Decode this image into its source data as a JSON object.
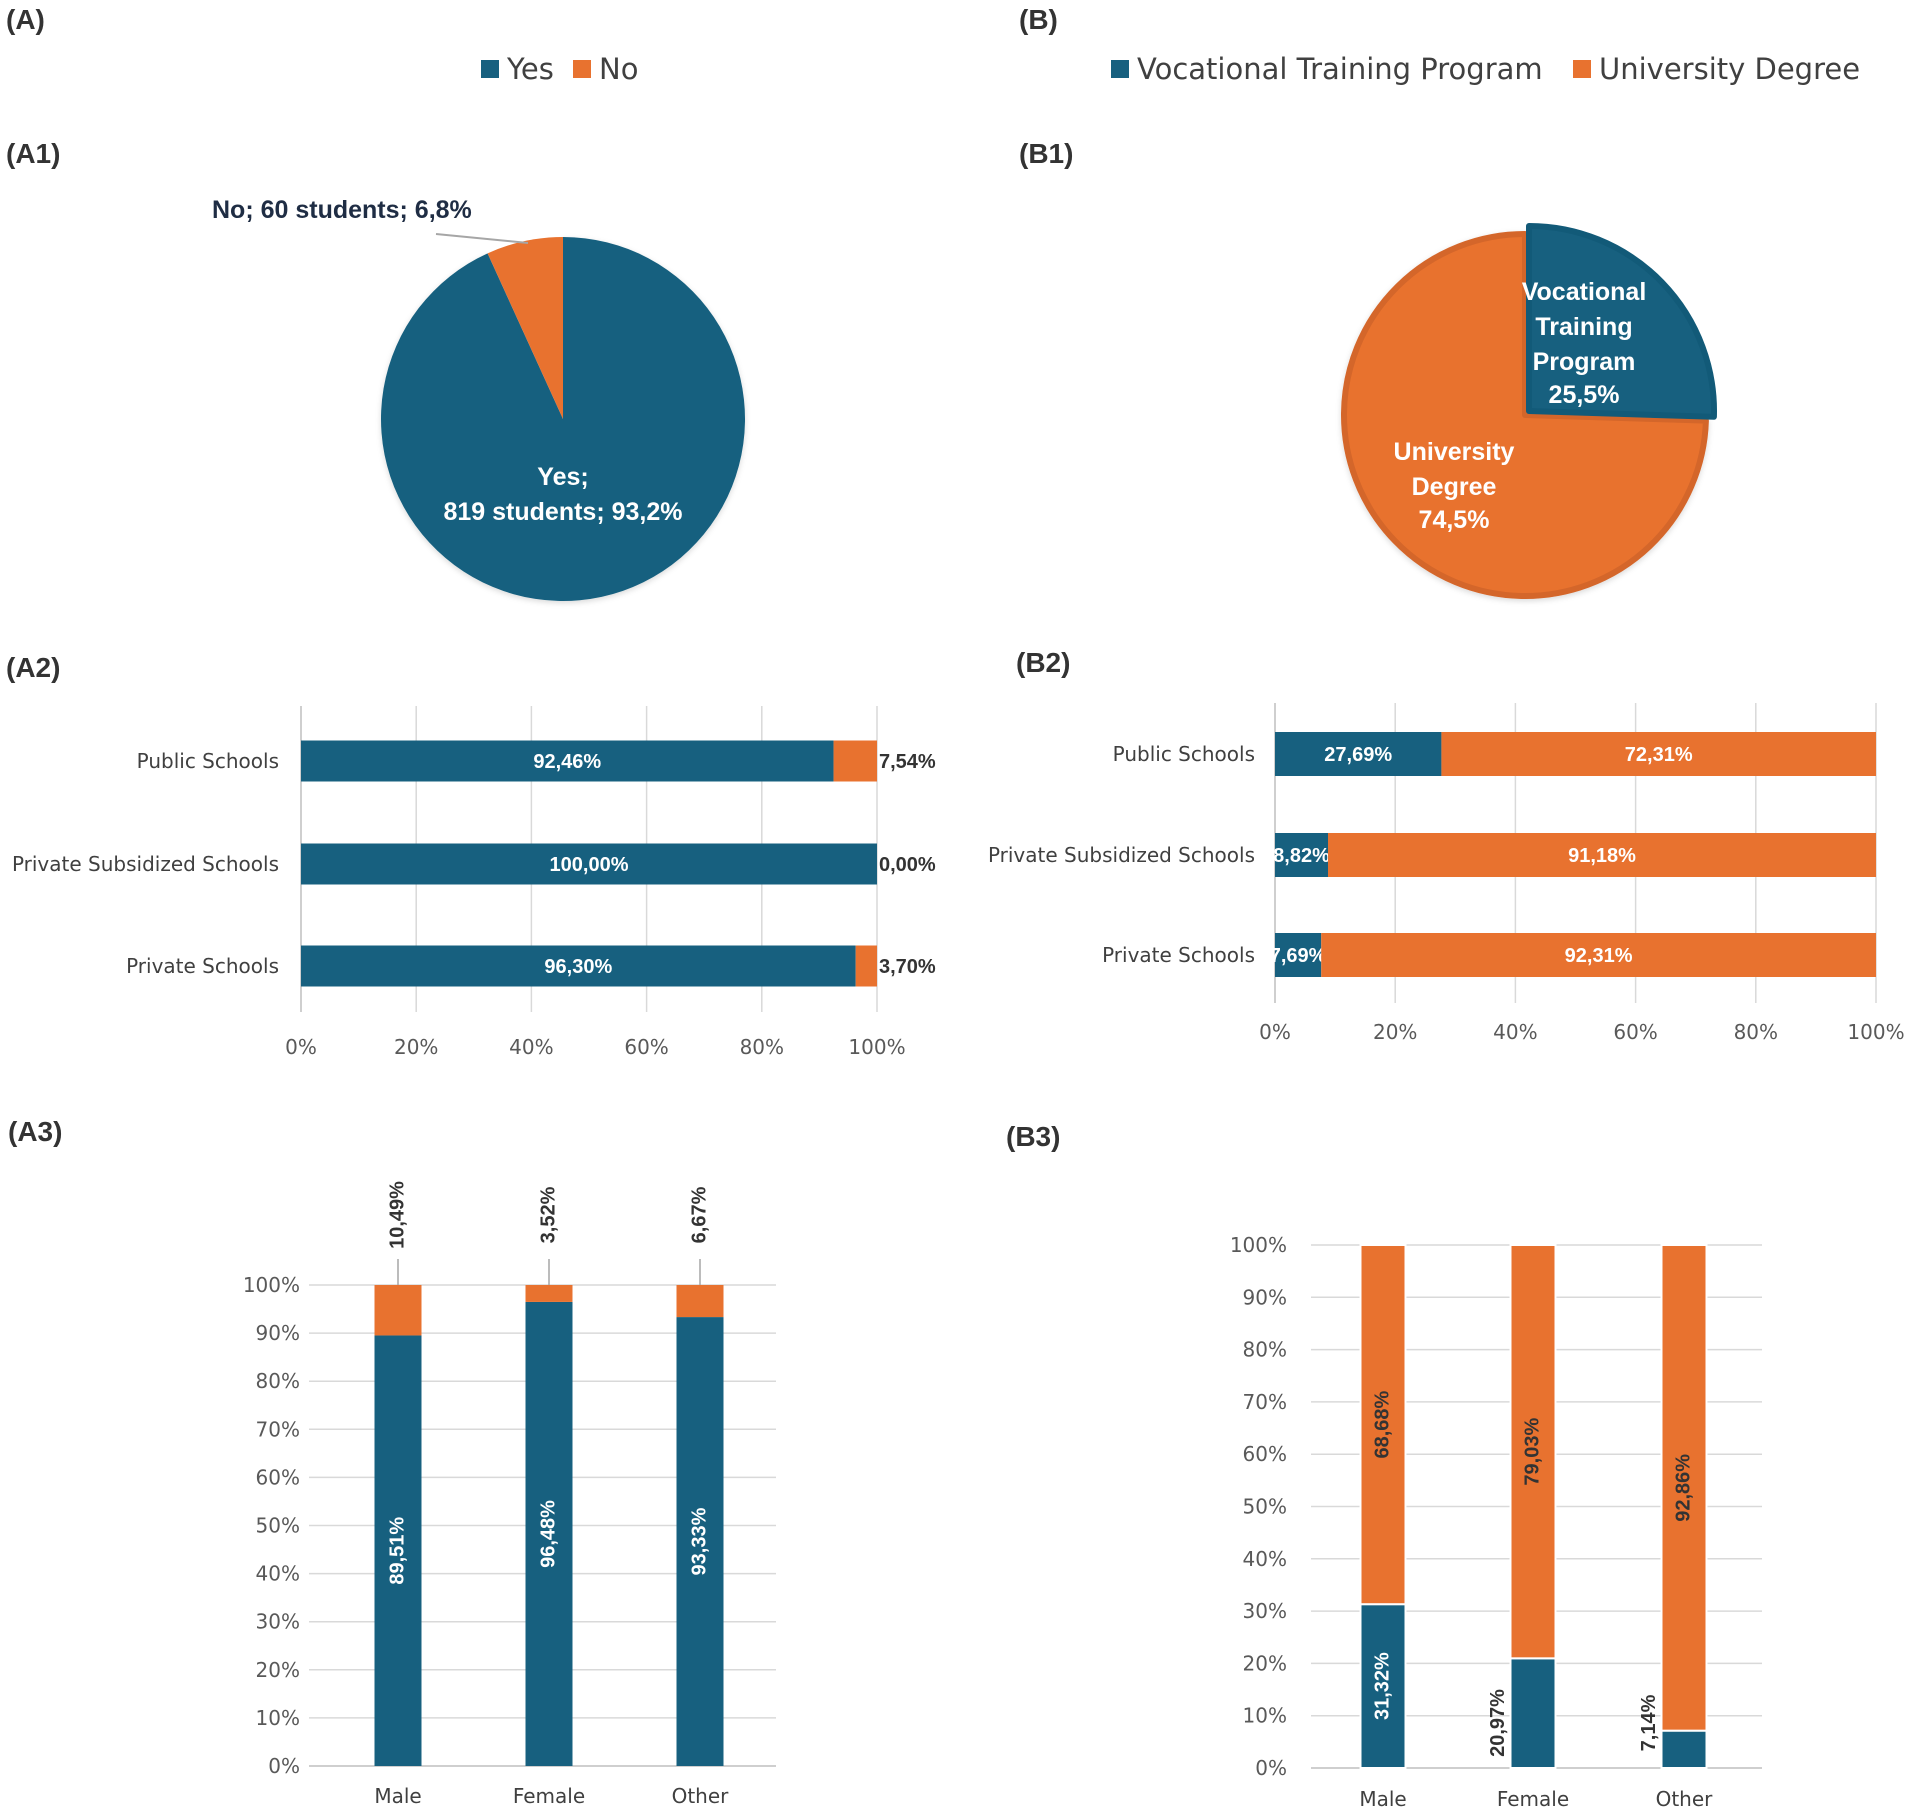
{
  "colors": {
    "blue": "#17607f",
    "orange": "#e8722f",
    "orange_dark": "#d4662a",
    "blue_dark": "#125a78"
  },
  "panels": {
    "A": "(A)",
    "B": "(B)",
    "A1": "(A1)",
    "B1": "(B1)",
    "A2": "(A2)",
    "B2": "(B2)",
    "A3": "(A3)",
    "B3": "(B3)"
  },
  "legend_a": {
    "yes": "Yes",
    "no": "No"
  },
  "legend_b": {
    "vtp": "Vocational Training Program",
    "ud": "University Degree"
  },
  "chart_data": [
    {
      "id": "A1",
      "type": "pie",
      "slices": [
        {
          "name": "Yes",
          "value": 93.2,
          "count": 819,
          "label_lines": [
            "Yes;",
            "819 students; 93,2%"
          ]
        },
        {
          "name": "No",
          "value": 6.8,
          "count": 60,
          "label_lines": [
            "No; 60 students; 6,8%"
          ]
        }
      ]
    },
    {
      "id": "B1",
      "type": "pie",
      "slices": [
        {
          "name": "Vocational Training Program",
          "value": 25.5,
          "label_lines": [
            "Vocational",
            "Training",
            "Program",
            "25,5%"
          ]
        },
        {
          "name": "University Degree",
          "value": 74.5,
          "label_lines": [
            "University",
            "Degree",
            "74,5%"
          ]
        }
      ]
    },
    {
      "id": "A2",
      "type": "bar",
      "orientation": "horizontal",
      "stacked": true,
      "categories": [
        "Public Schools",
        "Private Subsidized Schools",
        "Private Schools"
      ],
      "series": [
        {
          "name": "Yes",
          "values": [
            92.46,
            100.0,
            96.3
          ],
          "labels": [
            "92,46%",
            "100,00%",
            "96,30%"
          ]
        },
        {
          "name": "No",
          "values": [
            7.54,
            0.0,
            3.7
          ],
          "labels": [
            "7,54%",
            "0,00%",
            "3,70%"
          ]
        }
      ],
      "xlim": [
        0,
        100
      ],
      "ticks": [
        "0%",
        "20%",
        "40%",
        "60%",
        "80%",
        "100%"
      ]
    },
    {
      "id": "B2",
      "type": "bar",
      "orientation": "horizontal",
      "stacked": true,
      "categories": [
        "Public Schools",
        "Private Subsidized Schools",
        "Private Schools"
      ],
      "series": [
        {
          "name": "Vocational Training Program",
          "values": [
            27.69,
            8.82,
            7.69
          ],
          "labels": [
            "27,69%",
            "8,82%",
            "7,69%"
          ]
        },
        {
          "name": "University Degree",
          "values": [
            72.31,
            91.18,
            92.31
          ],
          "labels": [
            "72,31%",
            "91,18%",
            "92,31%"
          ]
        }
      ],
      "xlim": [
        0,
        100
      ],
      "ticks": [
        "0%",
        "20%",
        "40%",
        "60%",
        "80%",
        "100%"
      ]
    },
    {
      "id": "A3",
      "type": "bar",
      "orientation": "vertical",
      "stacked": true,
      "categories": [
        "Male",
        "Female",
        "Other"
      ],
      "series": [
        {
          "name": "Yes",
          "values": [
            89.51,
            96.48,
            93.33
          ],
          "labels": [
            "89,51%",
            "96,48%",
            "93,33%"
          ]
        },
        {
          "name": "No",
          "values": [
            10.49,
            3.52,
            6.67
          ],
          "labels": [
            "10,49%",
            "3,52%",
            "6,67%"
          ]
        }
      ],
      "ylim": [
        0,
        100
      ],
      "ticks": [
        "0%",
        "10%",
        "20%",
        "30%",
        "40%",
        "50%",
        "60%",
        "70%",
        "80%",
        "90%",
        "100%"
      ]
    },
    {
      "id": "B3",
      "type": "bar",
      "orientation": "vertical",
      "stacked": true,
      "categories": [
        "Male",
        "Female",
        "Other"
      ],
      "series": [
        {
          "name": "Vocational Training Program",
          "values": [
            31.32,
            20.97,
            7.14
          ],
          "labels": [
            "31,32%",
            "20,97%",
            "7,14%"
          ]
        },
        {
          "name": "University Degree",
          "values": [
            68.68,
            79.03,
            92.86
          ],
          "labels": [
            "68,68%",
            "79,03%",
            "92,86%"
          ]
        }
      ],
      "ylim": [
        0,
        100
      ],
      "ticks": [
        "0%",
        "10%",
        "20%",
        "30%",
        "40%",
        "50%",
        "60%",
        "70%",
        "80%",
        "90%",
        "100%"
      ]
    }
  ]
}
